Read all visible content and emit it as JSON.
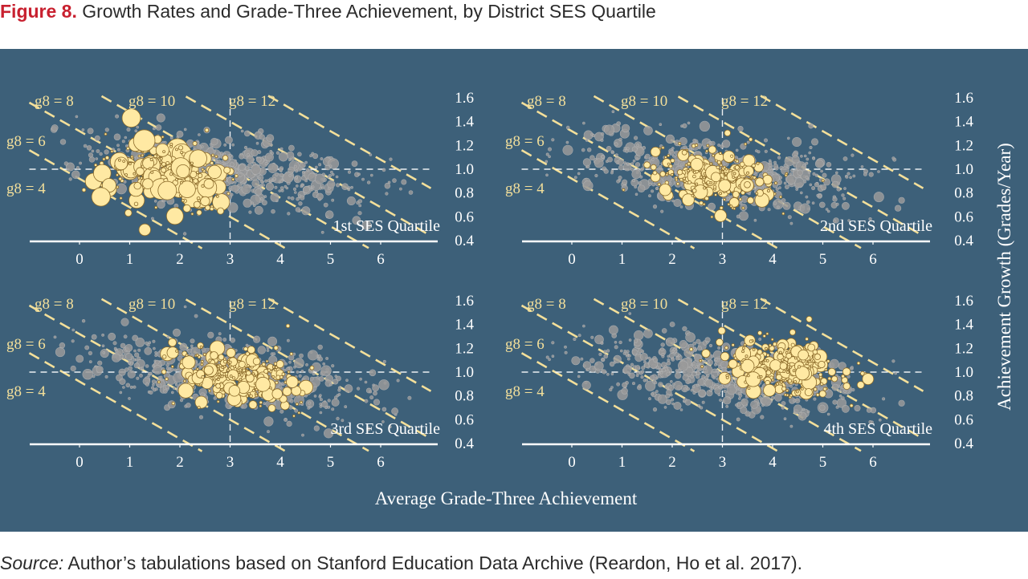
{
  "figure": {
    "label": "Figure 8.",
    "title": "Growth Rates and Grade-Three Achievement, by District SES Quartile",
    "source_label": "Source:",
    "source_text": "Author’s tabulations based on Stanford Education Data Archive (Reardon, Ho et al. 2017)."
  },
  "colors": {
    "background": "#3d6079",
    "highlight": "#ffe9a3",
    "highlight_stroke": "#8a6a2a",
    "other_points": "#9a9a9a",
    "reference_lines": "#f3df9a",
    "axis": "#ffffff"
  },
  "chart_data": {
    "type": "scatter",
    "xlabel": "Average Grade-Three Achievement",
    "ylabel": "Achievement Growth (Grades/Year)",
    "xlim": [
      -1,
      7
    ],
    "ylim": [
      0.4,
      1.6
    ],
    "x_ticks": [
      0,
      1,
      2,
      3,
      4,
      5,
      6
    ],
    "y_ticks": [
      0.4,
      0.6,
      0.8,
      1.0,
      1.2,
      1.4,
      1.6
    ],
    "x_tick_labels": [
      "0",
      "1",
      "2",
      "3",
      "4",
      "5",
      "6"
    ],
    "y_tick_labels": [
      "0.4",
      "0.6",
      "0.8",
      "1.0",
      "1.2",
      "1.4",
      "1.6"
    ],
    "reference_lines": [
      {
        "label": "g8 = 4",
        "g8": 4
      },
      {
        "label": "g8 = 6",
        "g8": 6
      },
      {
        "label": "g8 = 8",
        "g8": 8
      },
      {
        "label": "g8 = 10",
        "g8": 10
      },
      {
        "label": "g8 = 12",
        "g8": 12
      }
    ],
    "reference_markers": {
      "x": 3,
      "y": 1.0
    },
    "panels": [
      {
        "label": "1st SES Quartile",
        "cluster_center": [
          1.8,
          0.95
        ],
        "cluster_spread": [
          1.1,
          0.13
        ],
        "slope": -0.06
      },
      {
        "label": "2nd SES Quartile",
        "cluster_center": [
          2.9,
          0.92
        ],
        "cluster_spread": [
          1.0,
          0.11
        ],
        "slope": -0.05
      },
      {
        "label": "3rd SES Quartile",
        "cluster_center": [
          3.1,
          0.97
        ],
        "cluster_spread": [
          1.0,
          0.11
        ],
        "slope": -0.05
      },
      {
        "label": "4th SES Quartile",
        "cluster_center": [
          4.2,
          1.04
        ],
        "cluster_spread": [
          1.1,
          0.11
        ],
        "slope": -0.03
      }
    ],
    "all_districts": {
      "center": [
        2.9,
        0.98
      ],
      "spread": [
        1.4,
        0.14
      ],
      "slope": -0.05
    }
  }
}
